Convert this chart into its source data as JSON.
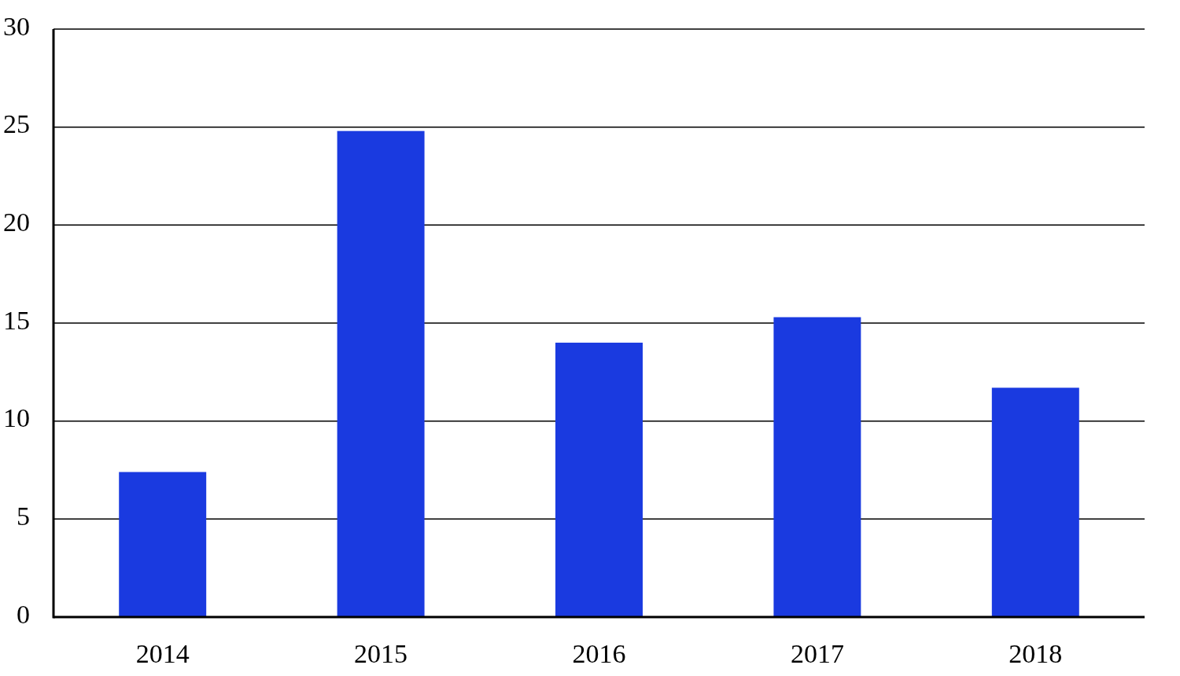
{
  "chart_data": {
    "type": "bar",
    "categories": [
      "2014",
      "2015",
      "2016",
      "2017",
      "2018"
    ],
    "values": [
      7.4,
      24.8,
      14.0,
      15.3,
      11.7
    ],
    "color": "#1a3ae0",
    "ylim": [
      0,
      30
    ],
    "yticks": [
      0,
      5,
      10,
      15,
      20,
      25,
      30
    ],
    "grid": "y"
  }
}
